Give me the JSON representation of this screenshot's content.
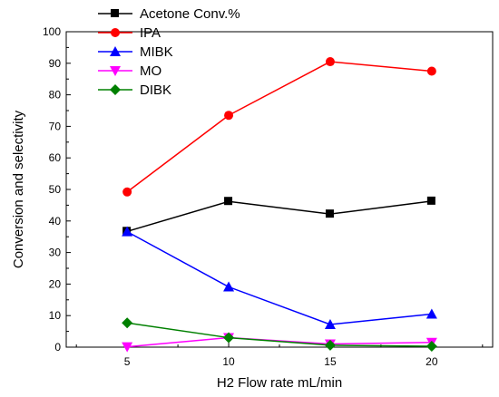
{
  "chart_data": {
    "type": "line",
    "xlabel": "H2 Flow rate mL/min",
    "ylabel": "Conversion and selectivity",
    "x": [
      5,
      10,
      15,
      20
    ],
    "xlim": [
      2,
      23
    ],
    "ylim": [
      0,
      100
    ],
    "x_ticks": [
      5,
      10,
      15,
      20
    ],
    "y_ticks": [
      0,
      10,
      20,
      30,
      40,
      50,
      60,
      70,
      80,
      90,
      100
    ],
    "grid": false,
    "legend_position": "top-left",
    "series": [
      {
        "name": "Acetone  Conv.%",
        "color": "#000000",
        "marker": "square",
        "values": [
          36.7,
          46.2,
          42.2,
          46.3
        ]
      },
      {
        "name": "IPA",
        "color": "#ff0000",
        "marker": "circle",
        "values": [
          49.2,
          73.5,
          90.5,
          87.5
        ]
      },
      {
        "name": "MIBK",
        "color": "#0000ff",
        "marker": "triangle-up",
        "values": [
          36.6,
          19.1,
          7.2,
          10.5
        ]
      },
      {
        "name": "MO",
        "color": "#ff00ff",
        "marker": "triangle-down",
        "values": [
          0.1,
          3.0,
          1.0,
          1.5
        ]
      },
      {
        "name": "DIBK",
        "color": "#008000",
        "marker": "diamond",
        "values": [
          7.7,
          3.0,
          0.6,
          0.3
        ]
      }
    ]
  }
}
